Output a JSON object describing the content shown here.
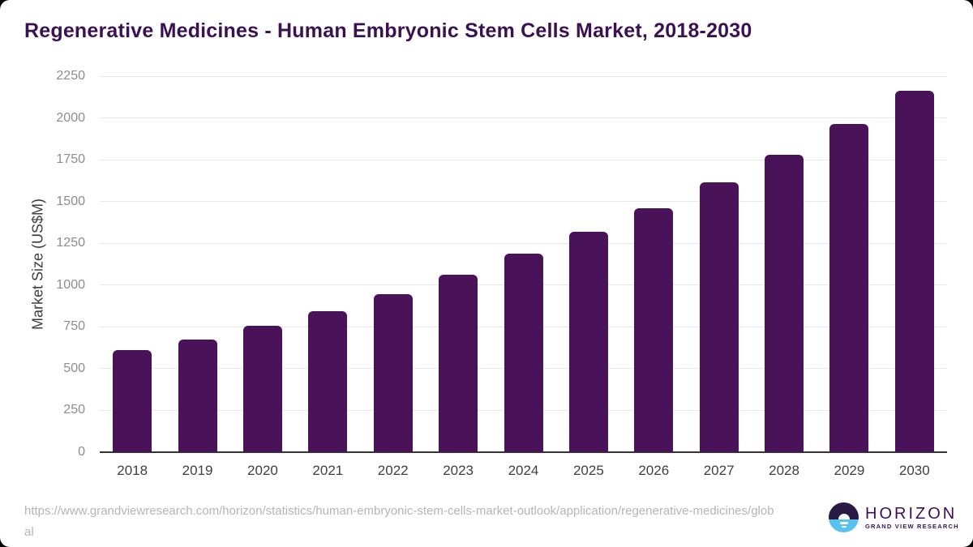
{
  "page": {
    "background": "#000000",
    "card_background": "#ffffff"
  },
  "header": {
    "title": "Regenerative Medicines - Human Embryonic Stem Cells Market, 2018-2030",
    "title_color": "#3a1151"
  },
  "chart_data": {
    "type": "bar",
    "title": "Regenerative Medicines - Human Embryonic Stem Cells Market, 2018-2030",
    "categories": [
      "2018",
      "2019",
      "2020",
      "2021",
      "2022",
      "2023",
      "2024",
      "2025",
      "2026",
      "2027",
      "2028",
      "2029",
      "2030"
    ],
    "values": [
      610,
      676,
      758,
      846,
      948,
      1061,
      1190,
      1321,
      1460,
      1616,
      1780,
      1964,
      2162
    ],
    "xlabel": "",
    "ylabel": "Market Size (US$M)",
    "ylim": [
      0,
      2250
    ],
    "ytick_step": 250,
    "yticks": [
      0,
      250,
      500,
      750,
      1000,
      1250,
      1500,
      1750,
      2000,
      2250
    ],
    "grid": true,
    "legend_position": "none",
    "bar_color": "#4a1258",
    "gridline_color": "#e8e8e8",
    "axis_line_color": "#343434",
    "ytick_color": "#8c8c8c",
    "xtick_color": "#3f3f3f"
  },
  "footer": {
    "source_url": "https://www.grandviewresearch.com/horizon/statistics/human-embryonic-stem-cells-market-outlook/application/regenerative-medicines/global",
    "logo": {
      "brand": "HORIZON",
      "subtitle": "GRAND VIEW RESEARCH",
      "icon": "horizon-sunset-circle-icon",
      "icon_purple": "#2b1a44",
      "icon_blue": "#58c2ee",
      "text_color": "#3b1053"
    }
  }
}
